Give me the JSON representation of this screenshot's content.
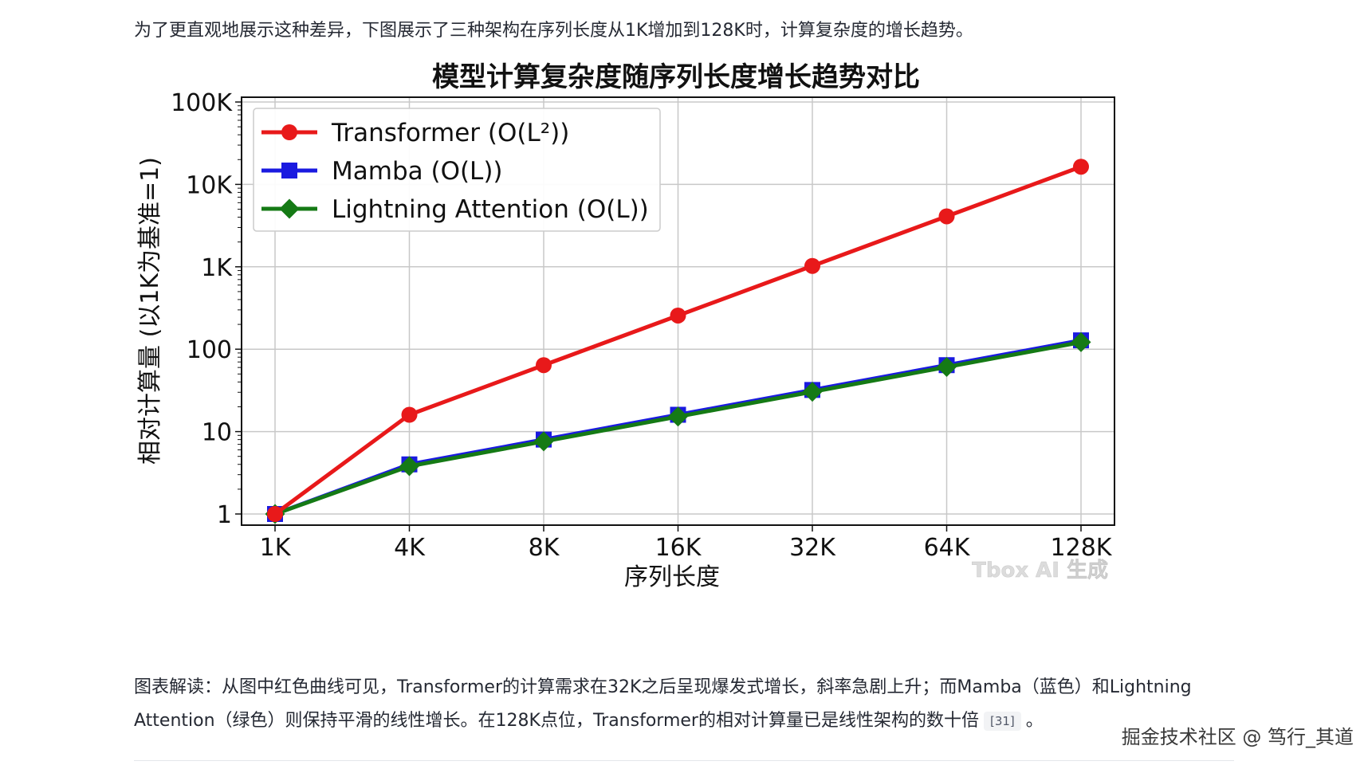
{
  "intro_text": "为了更直观地展示这种差异，下图展示了三种架构在序列长度从1K增加到128K时，计算复杂度的增长趋势。",
  "caption": {
    "text": "图表解读：从图中红色曲线可见，Transformer的计算需求在32K之后呈现爆发式增长，斜率急剧上升；而Mamba（蓝色）和Lightning Attention（绿色）则保持平滑的线性增长。在128K点位，Transformer的相对计算量已是线性架构的数十倍",
    "citation": "[31]",
    "end": "。"
  },
  "site_mark": "掘金技术社区 @ 笃行_其道",
  "chart_data": {
    "type": "line",
    "title": "模型计算复杂度随序列长度增长趋势对比",
    "xlabel": "序列长度",
    "ylabel": "相对计算量 (以1K为基准=1)",
    "yscale": "log",
    "categories": [
      "1K",
      "4K",
      "8K",
      "16K",
      "32K",
      "64K",
      "128K"
    ],
    "yticks": [
      {
        "value": 1,
        "label": "1"
      },
      {
        "value": 10,
        "label": "10"
      },
      {
        "value": 100,
        "label": "100"
      },
      {
        "value": 1000,
        "label": "1K"
      },
      {
        "value": 10000,
        "label": "10K"
      },
      {
        "value": 100000,
        "label": "100K"
      }
    ],
    "ylim": [
      1,
      100000
    ],
    "grid": true,
    "legend_position": "top-left",
    "watermark": "Tbox AI 生成",
    "series": [
      {
        "name": "Transformer",
        "formula": "O(L²)",
        "color": "#e8191a",
        "marker": "circle",
        "values": [
          1,
          16,
          64,
          256,
          1024,
          4096,
          16384
        ]
      },
      {
        "name": "Mamba",
        "formula": "O(L)",
        "color": "#1a1ae0",
        "marker": "square",
        "values": [
          1,
          4,
          8,
          16,
          32,
          64,
          128
        ]
      },
      {
        "name": "Lightning Attention",
        "formula": "O(L)",
        "color": "#157a15",
        "marker": "diamond",
        "values": [
          1,
          3.8,
          7.6,
          15.2,
          30.4,
          60.8,
          121.6
        ]
      }
    ]
  }
}
